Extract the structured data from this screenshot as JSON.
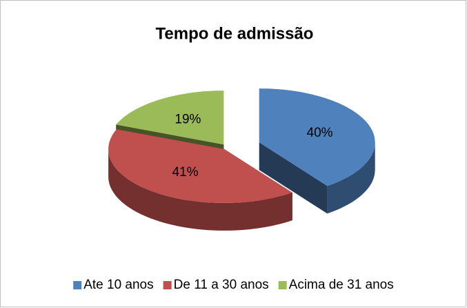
{
  "chart_data": {
    "type": "pie3d",
    "title": "Tempo de admissão",
    "categories": [
      "Ate 10 anos",
      "De 11 a 30 anos",
      "Acima de 31 anos"
    ],
    "values": [
      40,
      41,
      19
    ],
    "value_labels": [
      "40%",
      "41%",
      "19%"
    ],
    "colors": [
      "#4f81bd",
      "#c0504d",
      "#9bbb59"
    ],
    "legend": "bottom"
  }
}
